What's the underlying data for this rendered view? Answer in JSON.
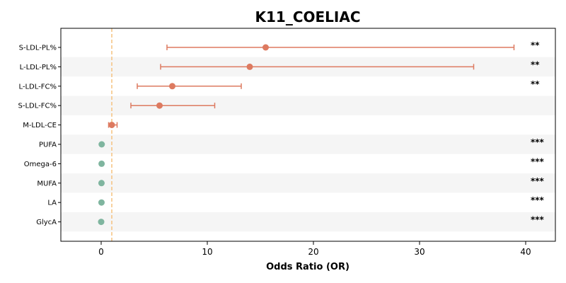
{
  "chart_data": {
    "type": "forest",
    "title": "K11_COELIAC",
    "xlabel": "Odds Ratio (OR)",
    "xlim": [
      -3.8,
      42.8
    ],
    "xticks": [
      0,
      10,
      20,
      30,
      40
    ],
    "reference_line": 1,
    "reference_line_color": "#f5c27f",
    "colors": {
      "risk": "#dd7a60",
      "protective": "#7fb59f",
      "band": "#f5f5f5"
    },
    "rows": [
      {
        "label": "S-LDL-PL%",
        "or": 15.5,
        "ci_low": 6.2,
        "ci_high": 38.9,
        "sig": "**",
        "group": "risk"
      },
      {
        "label": "L-LDL-PL%",
        "or": 14.0,
        "ci_low": 5.6,
        "ci_high": 35.1,
        "sig": "**",
        "group": "risk"
      },
      {
        "label": "L-LDL-FC%",
        "or": 6.7,
        "ci_low": 3.4,
        "ci_high": 13.2,
        "sig": "**",
        "group": "risk"
      },
      {
        "label": "S-LDL-FC%",
        "or": 5.5,
        "ci_low": 2.8,
        "ci_high": 10.7,
        "sig": "",
        "group": "risk"
      },
      {
        "label": "M-LDL-CE",
        "or": 1.0,
        "ci_low": 0.7,
        "ci_high": 1.5,
        "sig": "",
        "group": "risk"
      },
      {
        "label": "PUFA",
        "or": 0.05,
        "ci_low": 0.04,
        "ci_high": 0.06,
        "sig": "***",
        "group": "protective"
      },
      {
        "label": "Omega-6",
        "or": 0.04,
        "ci_low": 0.03,
        "ci_high": 0.05,
        "sig": "***",
        "group": "protective"
      },
      {
        "label": "MUFA",
        "or": 0.03,
        "ci_low": 0.02,
        "ci_high": 0.04,
        "sig": "***",
        "group": "protective"
      },
      {
        "label": "LA",
        "or": 0.03,
        "ci_low": 0.02,
        "ci_high": 0.04,
        "sig": "***",
        "group": "protective"
      },
      {
        "label": "GlycA",
        "or": 0.0,
        "ci_low": 0.0,
        "ci_high": 0.01,
        "sig": "***",
        "group": "protective"
      }
    ]
  }
}
